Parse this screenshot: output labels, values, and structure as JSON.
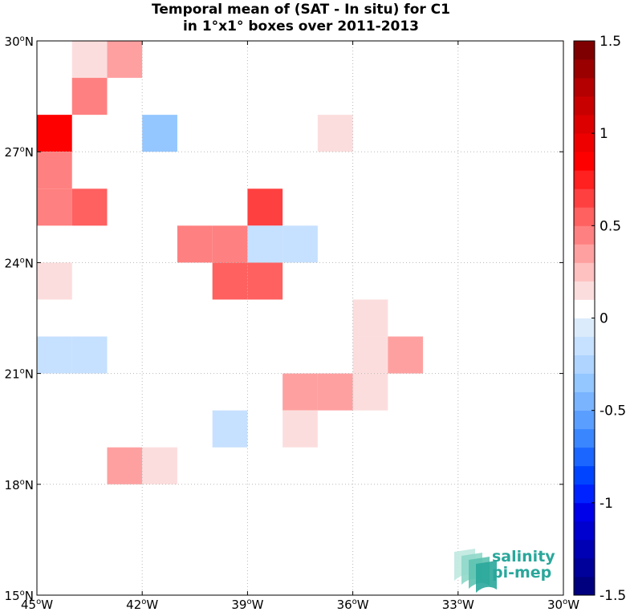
{
  "title_line1": "Temporal mean of (SAT - In situ) for C1",
  "title_line2": "in 1°x1° boxes over 2011-2013",
  "map": {
    "lon_range": [
      -45,
      -30
    ],
    "lat_range": [
      15,
      30
    ],
    "x_ticks": [
      {
        "lon": -45,
        "deg": "45",
        "hemi": "W"
      },
      {
        "lon": -42,
        "deg": "42",
        "hemi": "W"
      },
      {
        "lon": -39,
        "deg": "39",
        "hemi": "W"
      },
      {
        "lon": -36,
        "deg": "36",
        "hemi": "W"
      },
      {
        "lon": -33,
        "deg": "33",
        "hemi": "W"
      },
      {
        "lon": -30,
        "deg": "30",
        "hemi": "W"
      }
    ],
    "y_ticks": [
      {
        "lat": 15,
        "deg": "15",
        "hemi": "N"
      },
      {
        "lat": 18,
        "deg": "18",
        "hemi": "N"
      },
      {
        "lat": 21,
        "deg": "21",
        "hemi": "N"
      },
      {
        "lat": 24,
        "deg": "24",
        "hemi": "N"
      },
      {
        "lat": 27,
        "deg": "27",
        "hemi": "N"
      },
      {
        "lat": 30,
        "deg": "30",
        "hemi": "N"
      }
    ],
    "grid": "dotted",
    "cells": [
      {
        "lon": -44,
        "lat": 29,
        "value": 0.15
      },
      {
        "lon": -43,
        "lat": 29,
        "value": 0.3
      },
      {
        "lon": -44,
        "lat": 28,
        "value": 0.4
      },
      {
        "lon": -45,
        "lat": 27,
        "value": 0.8
      },
      {
        "lon": -42,
        "lat": 27,
        "value": -0.4
      },
      {
        "lon": -37,
        "lat": 27,
        "value": 0.15
      },
      {
        "lon": -45,
        "lat": 26,
        "value": 0.4
      },
      {
        "lon": -45,
        "lat": 25,
        "value": 0.4
      },
      {
        "lon": -44,
        "lat": 25,
        "value": 0.55
      },
      {
        "lon": -39,
        "lat": 25,
        "value": 0.6
      },
      {
        "lon": -41,
        "lat": 24,
        "value": 0.4
      },
      {
        "lon": -40,
        "lat": 24,
        "value": 0.4
      },
      {
        "lon": -39,
        "lat": 24,
        "value": -0.15
      },
      {
        "lon": -38,
        "lat": 24,
        "value": -0.15
      },
      {
        "lon": -45,
        "lat": 23,
        "value": 0.15
      },
      {
        "lon": -40,
        "lat": 23,
        "value": 0.5
      },
      {
        "lon": -39,
        "lat": 23,
        "value": 0.5
      },
      {
        "lon": -36,
        "lat": 22,
        "value": 0.15
      },
      {
        "lon": -45,
        "lat": 21,
        "value": -0.15
      },
      {
        "lon": -44,
        "lat": 21,
        "value": -0.15
      },
      {
        "lon": -36,
        "lat": 21,
        "value": 0.15
      },
      {
        "lon": -35,
        "lat": 21,
        "value": 0.3
      },
      {
        "lon": -38,
        "lat": 20,
        "value": 0.3
      },
      {
        "lon": -37,
        "lat": 20,
        "value": 0.3
      },
      {
        "lon": -36,
        "lat": 20,
        "value": 0.15
      },
      {
        "lon": -40,
        "lat": 19,
        "value": -0.15
      },
      {
        "lon": -38,
        "lat": 19,
        "value": 0.15
      },
      {
        "lon": -43,
        "lat": 18,
        "value": 0.3
      },
      {
        "lon": -42,
        "lat": 18,
        "value": 0.15
      }
    ]
  },
  "colorbar": {
    "min": -1.5,
    "max": 1.5,
    "levels": 30,
    "ticks": [
      {
        "value": 1.5,
        "label": "1.5"
      },
      {
        "value": 1,
        "label": "1"
      },
      {
        "value": 0.5,
        "label": "0.5"
      },
      {
        "value": 0,
        "label": "0"
      },
      {
        "value": -0.5,
        "label": "-0.5"
      },
      {
        "value": -1,
        "label": "-1"
      },
      {
        "value": -1.5,
        "label": "-1.5"
      }
    ],
    "colors": [
      "#00007f",
      "#00009a",
      "#0000b4",
      "#0000cf",
      "#0000e9",
      "#0022ff",
      "#0044ff",
      "#1a66ff",
      "#3a86ff",
      "#5a9eff",
      "#7ab4ff",
      "#94c6ff",
      "#aed4ff",
      "#c6e0ff",
      "#dcebfb",
      "#ffffff",
      "#fcdddd",
      "#ffc0c0",
      "#ffa0a0",
      "#ff8080",
      "#ff6060",
      "#ff4040",
      "#ff2020",
      "#ff0000",
      "#ef0000",
      "#dc0000",
      "#c80000",
      "#b40000",
      "#9a0000",
      "#7f0000"
    ]
  },
  "logo": {
    "line1": "salinity",
    "line2": "pi-mep",
    "color": "#2aa79b"
  }
}
